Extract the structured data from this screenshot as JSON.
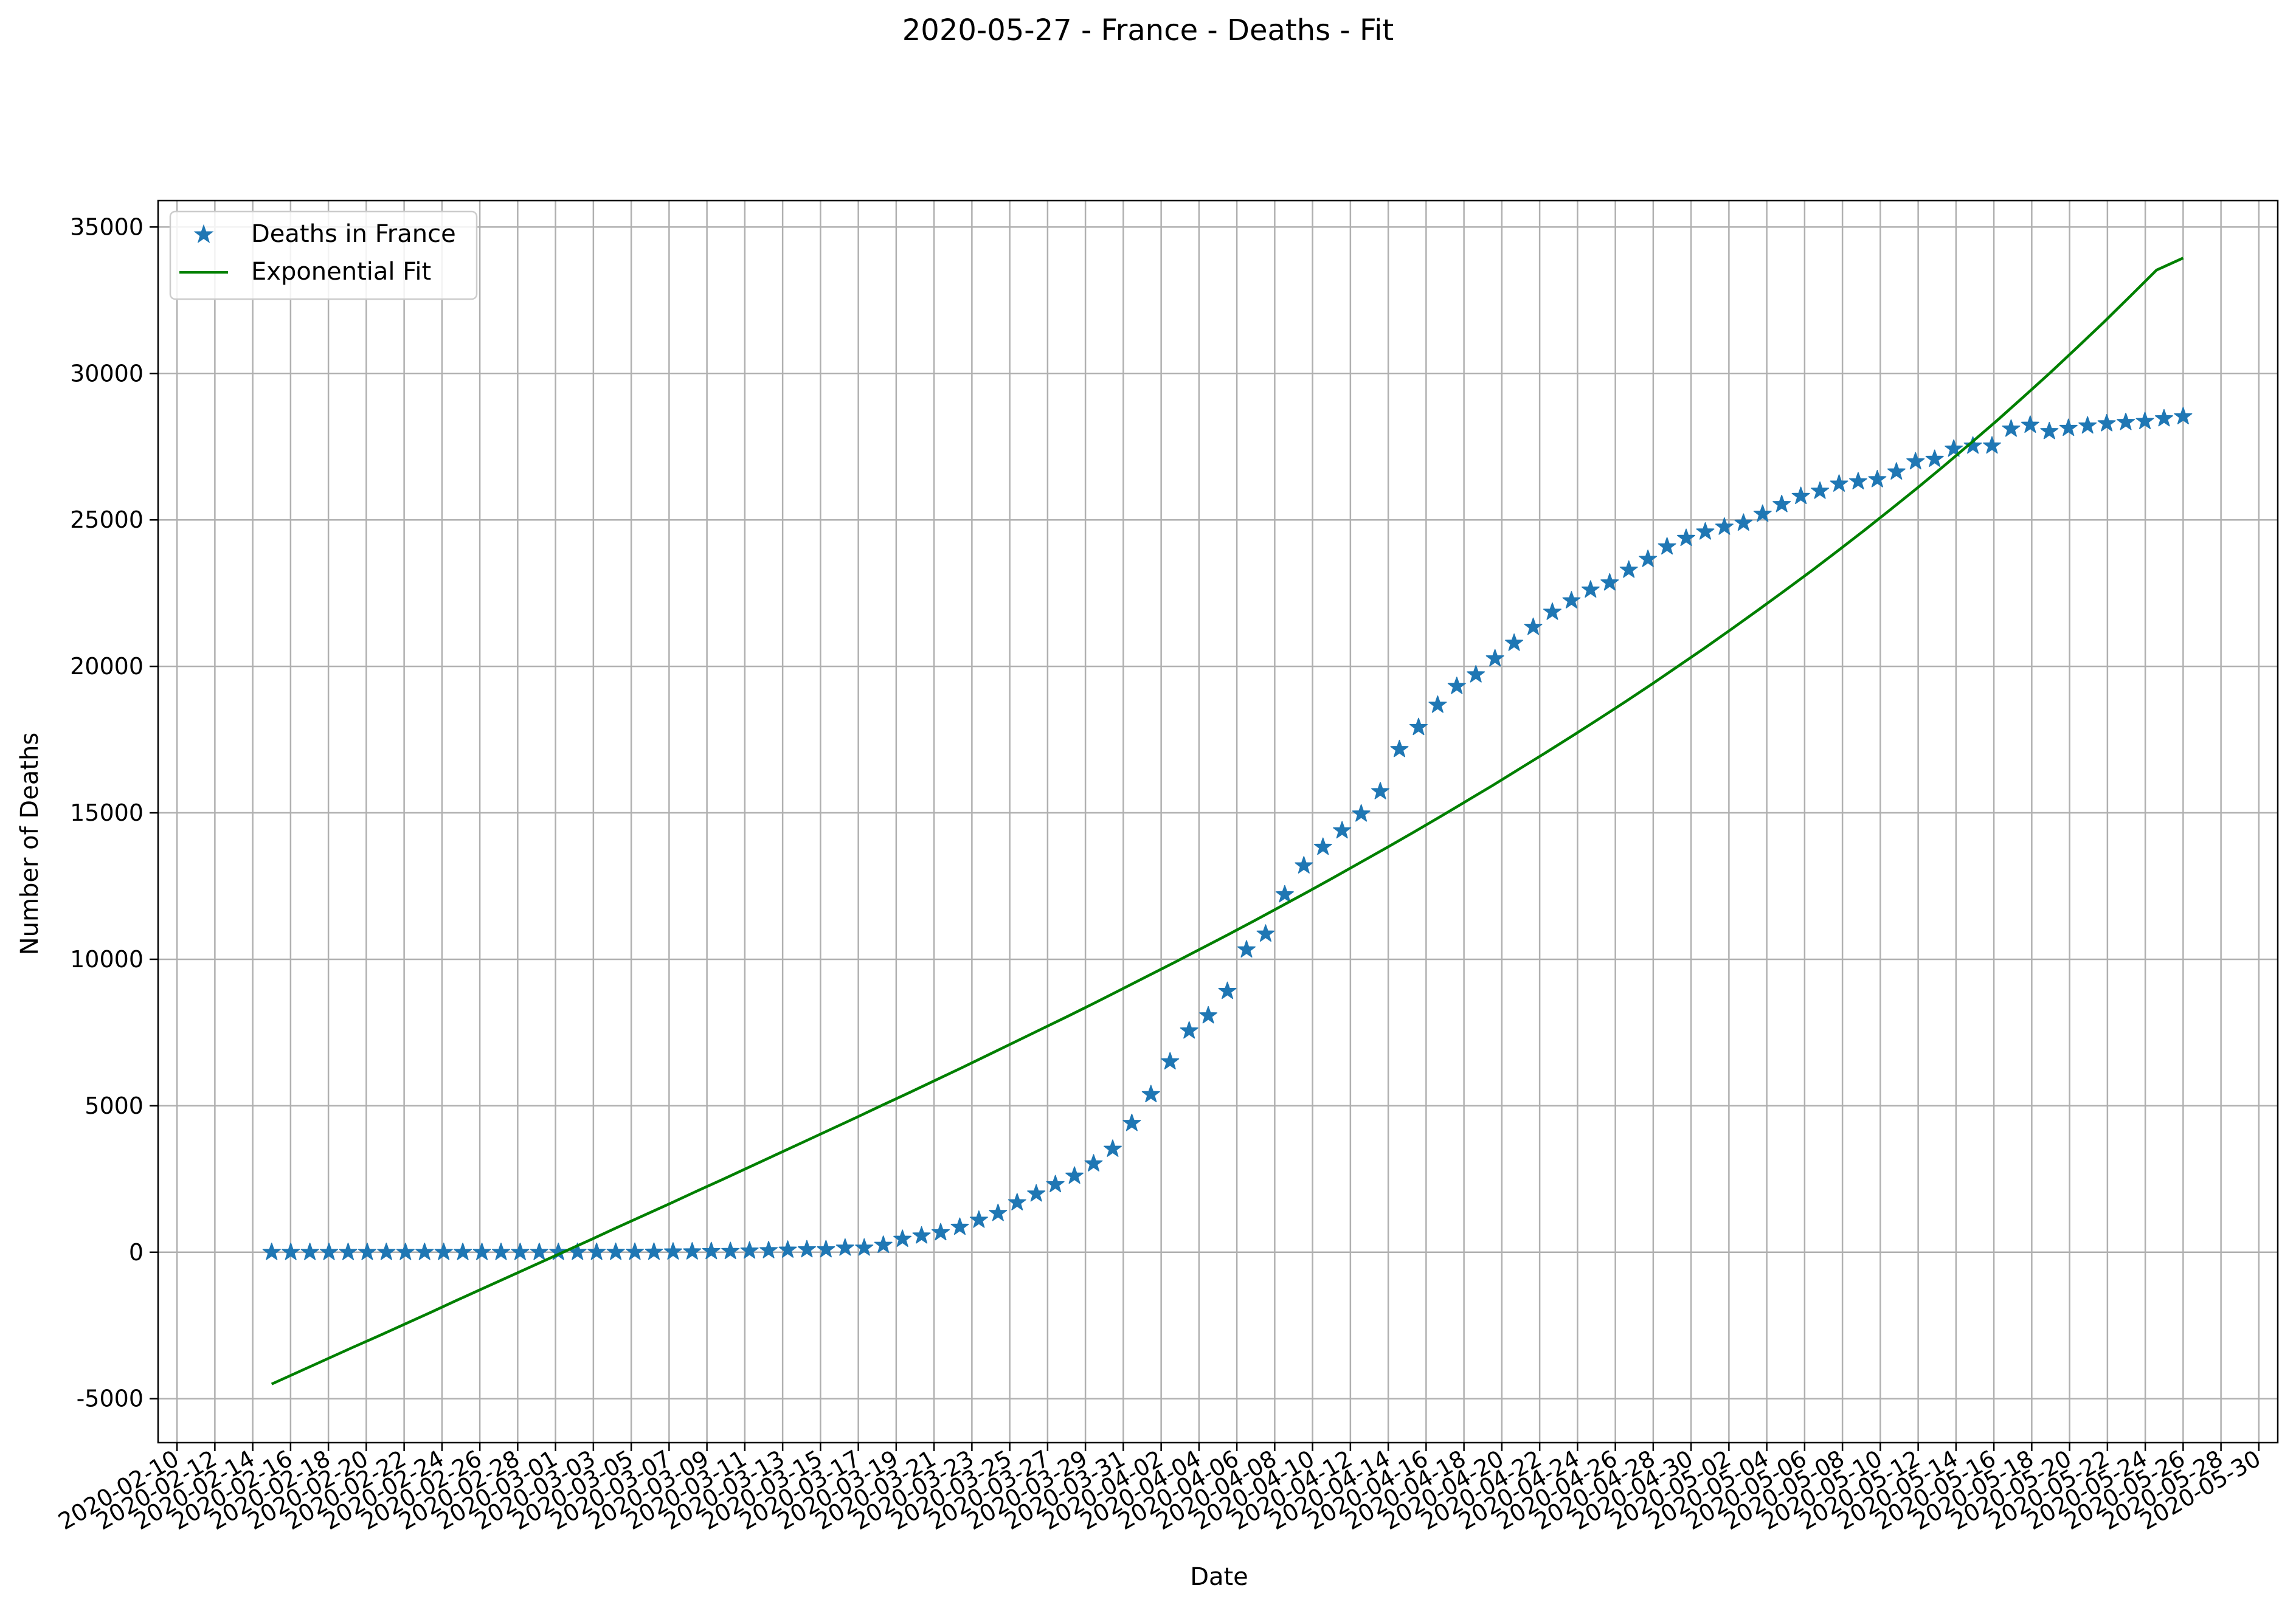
{
  "chart_data": {
    "type": "scatter",
    "title": "2020-05-27 - France - Deaths - Fit",
    "xlabel": "Date",
    "ylabel": "Number of Deaths",
    "x_axis_type": "date",
    "xlim": [
      "2020-02-09",
      "2020-05-31"
    ],
    "ylim": [
      -6500,
      35900
    ],
    "grid": true,
    "legend_position": "top-left",
    "x_tick_labels": [
      "2020-02-10",
      "2020-02-12",
      "2020-02-14",
      "2020-02-16",
      "2020-02-18",
      "2020-02-20",
      "2020-02-22",
      "2020-02-24",
      "2020-02-26",
      "2020-02-28",
      "2020-03-01",
      "2020-03-03",
      "2020-03-05",
      "2020-03-07",
      "2020-03-09",
      "2020-03-11",
      "2020-03-13",
      "2020-03-15",
      "2020-03-17",
      "2020-03-19",
      "2020-03-21",
      "2020-03-23",
      "2020-03-25",
      "2020-03-27",
      "2020-03-29",
      "2020-03-31",
      "2020-04-02",
      "2020-04-04",
      "2020-04-06",
      "2020-04-08",
      "2020-04-10",
      "2020-04-12",
      "2020-04-14",
      "2020-04-16",
      "2020-04-18",
      "2020-04-20",
      "2020-04-22",
      "2020-04-24",
      "2020-04-26",
      "2020-04-28",
      "2020-04-30",
      "2020-05-02",
      "2020-05-04",
      "2020-05-06",
      "2020-05-08",
      "2020-05-10",
      "2020-05-12",
      "2020-05-14",
      "2020-05-16",
      "2020-05-18",
      "2020-05-20",
      "2020-05-22",
      "2020-05-24",
      "2020-05-26",
      "2020-05-28",
      "2020-05-30"
    ],
    "y_tick_labels": [
      "-5000",
      "0",
      "5000",
      "10000",
      "15000",
      "20000",
      "25000",
      "30000",
      "35000"
    ],
    "y_ticks": [
      -5000,
      0,
      5000,
      10000,
      15000,
      20000,
      25000,
      30000,
      35000
    ],
    "series": [
      {
        "name": "Deaths in France",
        "style": "star-markers",
        "color": "#1f77b4",
        "x_start": "2020-02-15",
        "x_end": "2020-05-26",
        "values": [
          0,
          0,
          0,
          0,
          0,
          0,
          0,
          0,
          0,
          0,
          0,
          0,
          0,
          0,
          2,
          2,
          3,
          4,
          4,
          7,
          9,
          16,
          19,
          30,
          33,
          48,
          61,
          79,
          91,
          91,
          148,
          148,
          244,
          450,
          562,
          674,
          860,
          1100,
          1331,
          1696,
          1995,
          2314,
          2606,
          3024,
          3523,
          4403,
          5387,
          6507,
          7560,
          8078,
          8911,
          10328,
          10869,
          12210,
          13197,
          13832,
          14393,
          14967,
          15729,
          17167,
          17920,
          18681,
          19323,
          19718,
          20265,
          20796,
          21340,
          21856,
          22245,
          22614,
          22856,
          23293,
          23660,
          24087,
          24376,
          24594,
          24760,
          24895,
          25201,
          25531,
          25809,
          25987,
          26230,
          26310,
          26380,
          26643,
          26991,
          27074,
          27425,
          27529,
          27532,
          28108,
          28239,
          28022,
          28132,
          28215,
          28289,
          28332,
          28367,
          28460,
          28530
        ]
      },
      {
        "name": "Exponential Fit",
        "style": "line",
        "color": "#008000",
        "x_start": "2020-02-15",
        "x_end": "2020-05-26",
        "values": [
          -4500,
          -4090,
          -3680,
          -3270,
          -2870,
          -2460,
          -2050,
          -1630,
          -1220,
          -810,
          -400,
          10,
          420,
          840,
          1250,
          1660,
          2080,
          2490,
          2910,
          3330,
          3750,
          4170,
          4590,
          5020,
          5440,
          5870,
          6300,
          6740,
          7180,
          7620,
          8060,
          8510,
          8970,
          9430,
          9890,
          10360,
          10830,
          11310,
          11800,
          12290,
          12790,
          13300,
          13810,
          14330,
          14860,
          15400,
          15940,
          16500,
          17060,
          17630,
          18210,
          18800,
          19400,
          20020,
          20640,
          21280,
          21930,
          22590,
          23260,
          23950,
          24650,
          25370,
          26100,
          26850,
          27620,
          28400,
          29210,
          30030,
          30880,
          31740,
          32630,
          33530,
          33940
        ]
      }
    ]
  }
}
